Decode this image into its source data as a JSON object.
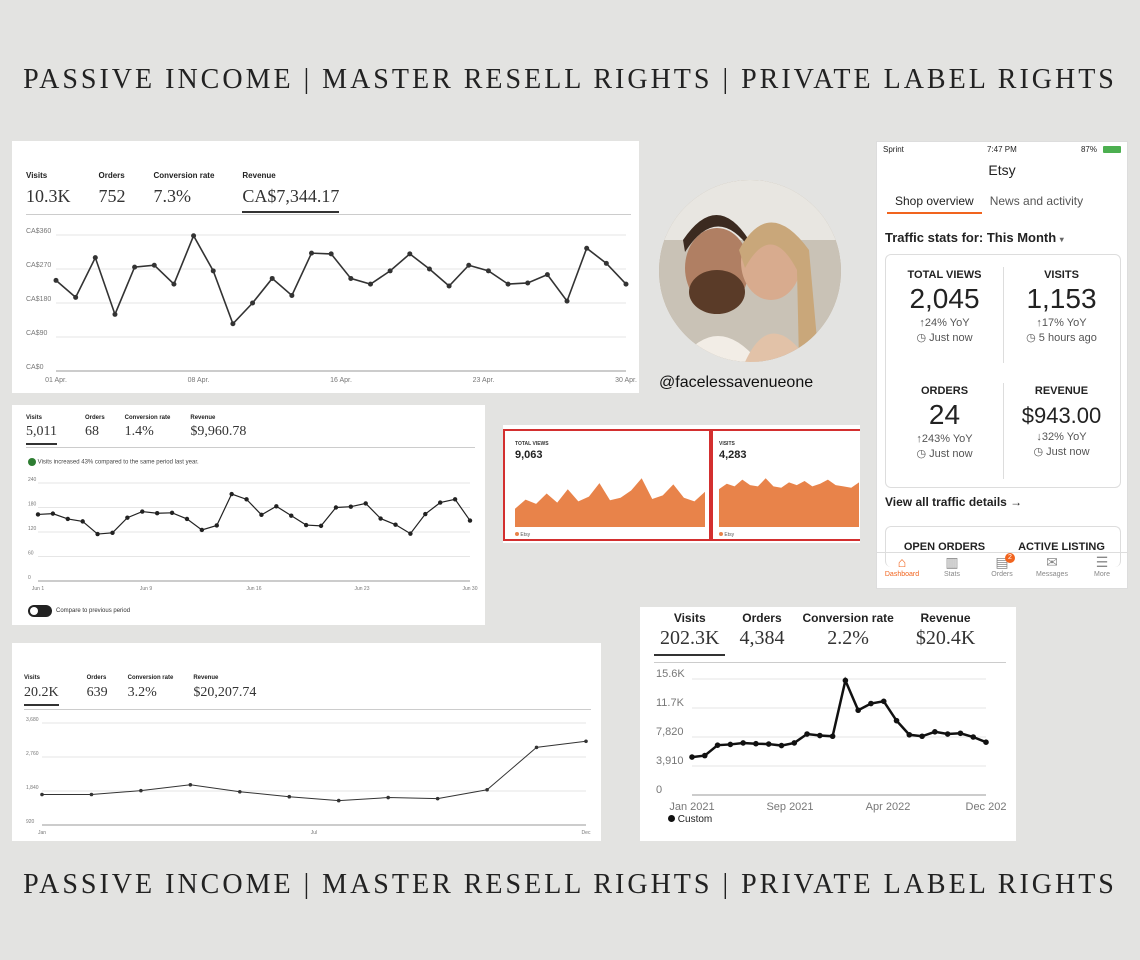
{
  "banner_text": "PASSIVE INCOME | MASTER RESELL RIGHTS | PRIVATE LABEL RIGHTS",
  "profile": {
    "handle": "@facelessavenueone"
  },
  "panel_april": {
    "stats": [
      {
        "label": "Visits",
        "value": "10.3K"
      },
      {
        "label": "Orders",
        "value": "752"
      },
      {
        "label": "Conversion rate",
        "value": "7.3%"
      },
      {
        "label": "Revenue",
        "value": "CA$7,344.17"
      }
    ]
  },
  "panel_june": {
    "stats": [
      {
        "label": "Visits",
        "value": "5,011"
      },
      {
        "label": "Orders",
        "value": "68"
      },
      {
        "label": "Conversion rate",
        "value": "1.4%"
      },
      {
        "label": "Revenue",
        "value": "$9,960.78"
      }
    ],
    "notice": "Visits increased 43% compared to the same period last year.",
    "toggle_label": "Compare to previous period"
  },
  "panel_year": {
    "stats": [
      {
        "label": "Visits",
        "value": "20.2K"
      },
      {
        "label": "Orders",
        "value": "639"
      },
      {
        "label": "Conversion rate",
        "value": "3.2%"
      },
      {
        "label": "Revenue",
        "value": "$20,207.74"
      }
    ]
  },
  "panel_custom": {
    "stats": [
      {
        "label": "Visits",
        "value": "202.3K"
      },
      {
        "label": "Orders",
        "value": "4,384"
      },
      {
        "label": "Conversion rate",
        "value": "2.2%"
      },
      {
        "label": "Revenue",
        "value": "$20.4K"
      }
    ],
    "legend": "Custom"
  },
  "panel_area": {
    "left": {
      "label": "TOTAL VIEWS",
      "value": "9,063"
    },
    "right": {
      "label": "VISITS",
      "value": "4,283"
    },
    "legend": "Etsy"
  },
  "phone": {
    "carrier": "Sprint",
    "time": "7:47 PM",
    "battery": "87%",
    "app_title": "Etsy",
    "tabs": [
      "Shop overview",
      "News and activity"
    ],
    "traffic_label": "Traffic stats for: This Month",
    "cells": [
      {
        "label": "TOTAL VIEWS",
        "value": "2,045",
        "yoy": "24% YoY",
        "yoy_dir": "up",
        "time": "Just now"
      },
      {
        "label": "VISITS",
        "value": "1,153",
        "yoy": "17% YoY",
        "yoy_dir": "up",
        "time": "5 hours ago"
      },
      {
        "label": "ORDERS",
        "value": "24",
        "yoy": "243% YoY",
        "yoy_dir": "up",
        "time": "Just now"
      },
      {
        "label": "REVENUE",
        "value": "$943.00",
        "yoy": "32% YoY",
        "yoy_dir": "down",
        "time": "Just now"
      }
    ],
    "view_all": "View all traffic details →",
    "bottom_cells": [
      "OPEN ORDERS",
      "ACTIVE LISTING"
    ],
    "nav": [
      {
        "label": "Dashboard",
        "icon": "home-icon"
      },
      {
        "label": "Stats",
        "icon": "bar-chart-icon"
      },
      {
        "label": "Orders",
        "icon": "clipboard-icon",
        "badge": "2"
      },
      {
        "label": "Messages",
        "icon": "envelope-icon"
      },
      {
        "label": "More",
        "icon": "menu-icon"
      }
    ]
  },
  "chart_data": [
    {
      "type": "line",
      "x_ticks": [
        "01 Apr.",
        "08 Apr.",
        "16 Apr.",
        "23 Apr.",
        "30 Apr."
      ],
      "y_ticks": [
        "CA$0",
        "CA$90",
        "CA$180",
        "CA$270",
        "CA$360"
      ],
      "ylim": [
        0,
        360
      ],
      "values": [
        240,
        195,
        300,
        150,
        275,
        280,
        230,
        358,
        265,
        125,
        180,
        245,
        200,
        312,
        310,
        245,
        230,
        265,
        310,
        270,
        225,
        280,
        265,
        230,
        233,
        255,
        185,
        325,
        285,
        230
      ]
    },
    {
      "type": "line",
      "x_ticks": [
        "Jun 1",
        "Jun 9",
        "Jun 16",
        "Jun 23",
        "Jun 30"
      ],
      "y_ticks": [
        "0",
        "60",
        "120",
        "180",
        "240"
      ],
      "ylim": [
        0,
        240
      ],
      "values": [
        163,
        165,
        152,
        146,
        115,
        118,
        155,
        170,
        166,
        167,
        152,
        125,
        136,
        213,
        200,
        162,
        183,
        160,
        137,
        135,
        180,
        182,
        190,
        153,
        138,
        116,
        164,
        192,
        200,
        148
      ]
    },
    {
      "type": "line",
      "x_ticks": [
        "Jan",
        "Jul",
        "Dec"
      ],
      "y_ticks": [
        "920",
        "1,840",
        "2,760",
        "3,680"
      ],
      "ylim": [
        0,
        3680
      ],
      "values": [
        1100,
        1100,
        1240,
        1450,
        1200,
        1020,
        880,
        990,
        950,
        1270,
        2800,
        3020
      ]
    },
    {
      "type": "line",
      "x_ticks": [
        "Jan 2021",
        "Sep 2021",
        "Apr 2022",
        "Dec 202"
      ],
      "y_ticks": [
        "0",
        "3,910",
        "7,820",
        "11.7K",
        "15.6K"
      ],
      "ylim": [
        0,
        15600
      ],
      "values": [
        5100,
        5300,
        6700,
        6800,
        7000,
        6900,
        6850,
        6650,
        7000,
        8200,
        8000,
        7900,
        15400,
        11400,
        12300,
        12600,
        10000,
        8100,
        7900,
        8500,
        8200,
        8300,
        7800,
        7100
      ],
      "series": [
        {
          "name": "Custom"
        }
      ]
    },
    {
      "type": "area",
      "values": [
        30,
        45,
        38,
        55,
        40,
        62,
        42,
        50,
        72,
        44,
        48,
        60,
        80,
        46,
        52,
        70,
        48,
        42,
        58
      ]
    },
    {
      "type": "area",
      "values": [
        28,
        32,
        30,
        35,
        31,
        30,
        36,
        30,
        29,
        33,
        31,
        34,
        30,
        32,
        35,
        31,
        30,
        29,
        33
      ]
    }
  ]
}
